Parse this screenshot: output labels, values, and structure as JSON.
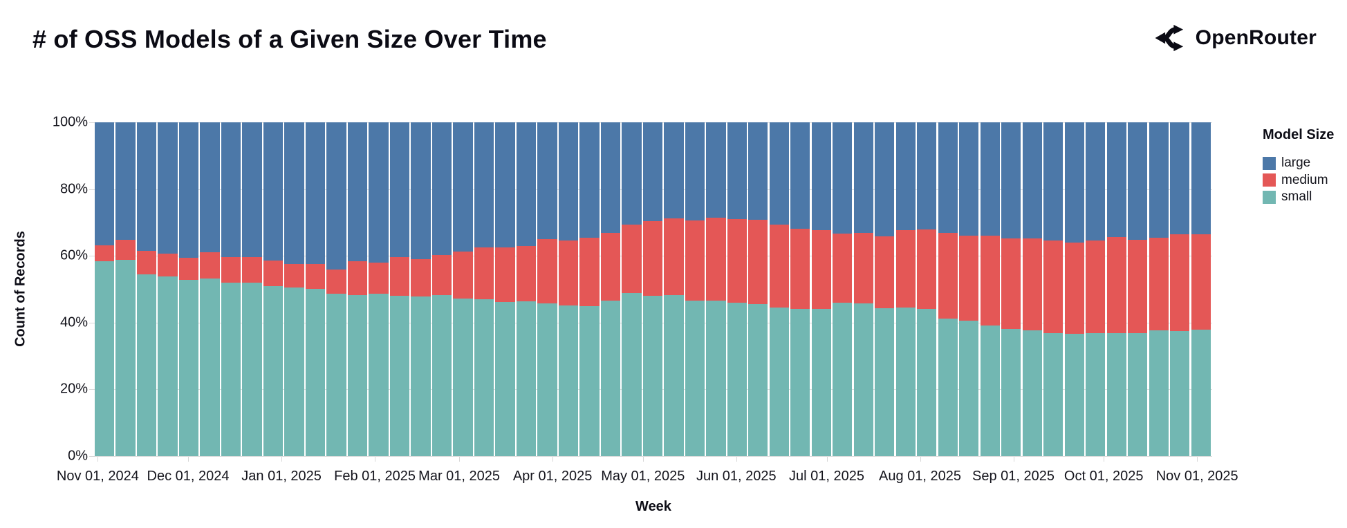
{
  "header": {
    "title": "# of OSS Models of a Given Size Over Time",
    "brand": "OpenRouter"
  },
  "chart_data": {
    "type": "bar",
    "variant": "stacked-normalized-column",
    "title": "# of OSS Models of a Given Size Over Time",
    "xlabel": "Week",
    "ylabel": "Count of Records",
    "ylim": [
      0,
      100
    ],
    "grid": true,
    "y_ticks": [
      {
        "label": "0%",
        "value": 0
      },
      {
        "label": "20%",
        "value": 20
      },
      {
        "label": "40%",
        "value": 40
      },
      {
        "label": "60%",
        "value": 60
      },
      {
        "label": "80%",
        "value": 80
      },
      {
        "label": "100%",
        "value": 100
      }
    ],
    "x_ticks": [
      {
        "label": "Nov 01, 2024",
        "date": "2024-11-01"
      },
      {
        "label": "Dec 01, 2024",
        "date": "2024-12-01"
      },
      {
        "label": "Jan 01, 2025",
        "date": "2025-01-01"
      },
      {
        "label": "Feb 01, 2025",
        "date": "2025-02-01"
      },
      {
        "label": "Mar 01, 2025",
        "date": "2025-03-01"
      },
      {
        "label": "Apr 01, 2025",
        "date": "2025-04-01"
      },
      {
        "label": "May 01, 2025",
        "date": "2025-05-01"
      },
      {
        "label": "Jun 01, 2025",
        "date": "2025-06-01"
      },
      {
        "label": "Jul 01, 2025",
        "date": "2025-07-01"
      },
      {
        "label": "Aug 01, 2025",
        "date": "2025-08-01"
      },
      {
        "label": "Sep 01, 2025",
        "date": "2025-09-01"
      },
      {
        "label": "Oct 01, 2025",
        "date": "2025-10-01"
      },
      {
        "label": "Nov 01, 2025",
        "date": "2025-11-01"
      }
    ],
    "legend": {
      "title": "Model Size",
      "position": "right",
      "entries": [
        {
          "label": "large",
          "color": "#4c78a8"
        },
        {
          "label": "medium",
          "color": "#e45756"
        },
        {
          "label": "small",
          "color": "#72b7b2"
        }
      ]
    },
    "stack_order_bottom_to_top": [
      "small",
      "medium",
      "large"
    ],
    "units": "percent of weekly records",
    "weeks": [
      {
        "week": "2024-10-27",
        "small": 58.3,
        "medium": 4.8,
        "large": 36.9
      },
      {
        "week": "2024-11-03",
        "small": 58.8,
        "medium": 6.0,
        "large": 35.2
      },
      {
        "week": "2024-11-10",
        "small": 54.4,
        "medium": 7.1,
        "large": 38.5
      },
      {
        "week": "2024-11-17",
        "small": 53.8,
        "medium": 6.8,
        "large": 39.4
      },
      {
        "week": "2024-11-24",
        "small": 52.8,
        "medium": 6.6,
        "large": 40.6
      },
      {
        "week": "2024-12-01",
        "small": 53.3,
        "medium": 7.8,
        "large": 38.9
      },
      {
        "week": "2024-12-08",
        "small": 51.9,
        "medium": 7.8,
        "large": 40.3
      },
      {
        "week": "2024-12-15",
        "small": 51.9,
        "medium": 7.7,
        "large": 40.4
      },
      {
        "week": "2024-12-22",
        "small": 51.0,
        "medium": 7.5,
        "large": 41.5
      },
      {
        "week": "2024-12-29",
        "small": 50.6,
        "medium": 7.0,
        "large": 42.4
      },
      {
        "week": "2025-01-05",
        "small": 50.2,
        "medium": 7.4,
        "large": 42.4
      },
      {
        "week": "2025-01-12",
        "small": 48.6,
        "medium": 7.4,
        "large": 44.0
      },
      {
        "week": "2025-01-19",
        "small": 48.3,
        "medium": 10.0,
        "large": 41.7
      },
      {
        "week": "2025-01-26",
        "small": 48.6,
        "medium": 9.4,
        "large": 42.0
      },
      {
        "week": "2025-02-02",
        "small": 48.1,
        "medium": 11.6,
        "large": 40.3
      },
      {
        "week": "2025-02-09",
        "small": 47.9,
        "medium": 11.1,
        "large": 41.0
      },
      {
        "week": "2025-02-16",
        "small": 48.3,
        "medium": 12.0,
        "large": 39.7
      },
      {
        "week": "2025-02-23",
        "small": 47.2,
        "medium": 14.1,
        "large": 38.7
      },
      {
        "week": "2025-03-02",
        "small": 46.9,
        "medium": 15.7,
        "large": 37.4
      },
      {
        "week": "2025-03-09",
        "small": 46.2,
        "medium": 16.3,
        "large": 37.5
      },
      {
        "week": "2025-03-16",
        "small": 46.3,
        "medium": 16.6,
        "large": 37.1
      },
      {
        "week": "2025-03-23",
        "small": 45.8,
        "medium": 19.2,
        "large": 35.0
      },
      {
        "week": "2025-03-30",
        "small": 45.1,
        "medium": 19.6,
        "large": 35.3
      },
      {
        "week": "2025-04-06",
        "small": 44.9,
        "medium": 20.5,
        "large": 34.6
      },
      {
        "week": "2025-04-13",
        "small": 46.6,
        "medium": 20.2,
        "large": 33.2
      },
      {
        "week": "2025-04-20",
        "small": 48.8,
        "medium": 20.6,
        "large": 30.6
      },
      {
        "week": "2025-04-27",
        "small": 48.1,
        "medium": 22.4,
        "large": 29.5
      },
      {
        "week": "2025-05-04",
        "small": 48.2,
        "medium": 23.0,
        "large": 28.8
      },
      {
        "week": "2025-05-11",
        "small": 46.5,
        "medium": 24.1,
        "large": 29.4
      },
      {
        "week": "2025-05-18",
        "small": 46.6,
        "medium": 24.9,
        "large": 28.5
      },
      {
        "week": "2025-05-25",
        "small": 46.0,
        "medium": 25.1,
        "large": 28.9
      },
      {
        "week": "2025-06-01",
        "small": 45.5,
        "medium": 25.3,
        "large": 29.2
      },
      {
        "week": "2025-06-08",
        "small": 44.6,
        "medium": 24.7,
        "large": 30.7
      },
      {
        "week": "2025-06-15",
        "small": 44.2,
        "medium": 24.0,
        "large": 31.8
      },
      {
        "week": "2025-06-22",
        "small": 44.1,
        "medium": 23.6,
        "large": 32.3
      },
      {
        "week": "2025-06-29",
        "small": 46.0,
        "medium": 20.7,
        "large": 33.3
      },
      {
        "week": "2025-07-06",
        "small": 45.8,
        "medium": 21.1,
        "large": 33.1
      },
      {
        "week": "2025-07-13",
        "small": 44.3,
        "medium": 21.5,
        "large": 34.2
      },
      {
        "week": "2025-07-20",
        "small": 44.5,
        "medium": 23.2,
        "large": 32.3
      },
      {
        "week": "2025-07-27",
        "small": 44.1,
        "medium": 23.8,
        "large": 32.1
      },
      {
        "week": "2025-08-03",
        "small": 41.2,
        "medium": 25.7,
        "large": 33.1
      },
      {
        "week": "2025-08-10",
        "small": 40.5,
        "medium": 25.5,
        "large": 34.0
      },
      {
        "week": "2025-08-17",
        "small": 39.2,
        "medium": 26.8,
        "large": 34.0
      },
      {
        "week": "2025-08-24",
        "small": 38.0,
        "medium": 27.3,
        "large": 34.7
      },
      {
        "week": "2025-08-31",
        "small": 37.7,
        "medium": 27.6,
        "large": 34.7
      },
      {
        "week": "2025-09-07",
        "small": 36.9,
        "medium": 27.7,
        "large": 35.4
      },
      {
        "week": "2025-09-14",
        "small": 36.7,
        "medium": 27.3,
        "large": 36.0
      },
      {
        "week": "2025-09-21",
        "small": 36.8,
        "medium": 27.8,
        "large": 35.4
      },
      {
        "week": "2025-09-28",
        "small": 36.9,
        "medium": 28.7,
        "large": 34.4
      },
      {
        "week": "2025-10-05",
        "small": 36.8,
        "medium": 28.0,
        "large": 35.2
      },
      {
        "week": "2025-10-12",
        "small": 37.7,
        "medium": 27.7,
        "large": 34.6
      },
      {
        "week": "2025-10-19",
        "small": 37.5,
        "medium": 29.0,
        "large": 33.5
      },
      {
        "week": "2025-10-26",
        "small": 37.9,
        "medium": 28.5,
        "large": 33.6
      }
    ]
  },
  "colors": {
    "large": "#4c78a8",
    "medium": "#e45756",
    "small": "#72b7b2",
    "grid": "#dddddd",
    "text": "#101018"
  }
}
